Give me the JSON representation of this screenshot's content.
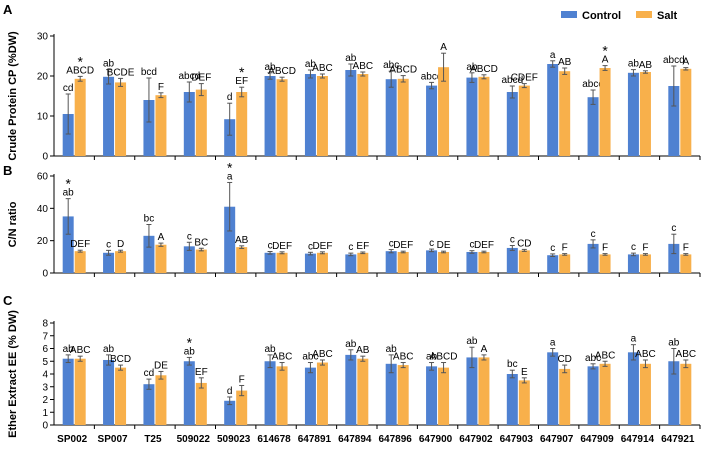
{
  "legend": {
    "control_label": "Control",
    "salt_label": "Salt"
  },
  "colors": {
    "control": "#4f81d1",
    "salt": "#f8b04b"
  },
  "chart_data": [
    {
      "type": "bar",
      "panel": "A",
      "ylabel": "Crude Protein CP (%DW)",
      "ylim": [
        0,
        30
      ],
      "yticks": [
        0,
        10,
        20,
        30
      ],
      "legend_position": "top-right",
      "categories": [
        "SP002",
        "SP007",
        "T25",
        "509022",
        "509023",
        "614678",
        "647891",
        "647894",
        "647896",
        "647900",
        "647902",
        "647903",
        "647907",
        "647909",
        "647914",
        "647921"
      ],
      "series": [
        {
          "name": "Control",
          "values": [
            10.5,
            19.8,
            14.0,
            16.0,
            9.2,
            20.0,
            20.5,
            21.5,
            19.2,
            17.6,
            19.6,
            16.0,
            23.0,
            14.7,
            20.8,
            17.5
          ],
          "errors": [
            5.0,
            1.8,
            5.5,
            2.5,
            4.0,
            0.8,
            1.0,
            1.5,
            2.0,
            0.8,
            1.2,
            1.5,
            0.8,
            1.8,
            0.8,
            5.0
          ],
          "letters": [
            "cd",
            "ab",
            "bcd",
            "abcd",
            "d",
            "ab",
            "ab",
            "ab",
            "abc",
            "abcd",
            "ab",
            "abcd",
            "a",
            "abcd",
            "ab",
            "abcd"
          ],
          "stars": [
            false,
            false,
            false,
            false,
            false,
            false,
            false,
            false,
            false,
            false,
            false,
            false,
            false,
            false,
            false,
            false
          ]
        },
        {
          "name": "Salt",
          "values": [
            19.3,
            18.4,
            15.2,
            16.6,
            16.0,
            19.2,
            20.0,
            20.5,
            19.3,
            22.2,
            19.8,
            17.6,
            21.2,
            22.0,
            21.0,
            21.8
          ],
          "errors": [
            0.6,
            1.0,
            0.6,
            1.5,
            1.2,
            0.5,
            0.5,
            0.5,
            0.8,
            3.5,
            0.5,
            0.5,
            0.8,
            0.6,
            0.3,
            0.3
          ],
          "letters": [
            "ABCD",
            "BCDE",
            "F",
            "DEF",
            "EF",
            "ABCD",
            "ABC",
            "ABC",
            "ABCD",
            "A",
            "ABCD",
            "CDEF",
            "AB",
            "A",
            "AB",
            "A"
          ],
          "stars": [
            true,
            false,
            false,
            false,
            true,
            false,
            false,
            false,
            false,
            false,
            false,
            false,
            false,
            true,
            false,
            false
          ]
        }
      ]
    },
    {
      "type": "bar",
      "panel": "B",
      "ylabel": "C/N ratio",
      "ylim": [
        0,
        60
      ],
      "yticks": [
        0,
        20,
        40,
        60
      ],
      "categories": [
        "SP002",
        "SP007",
        "T25",
        "509022",
        "509023",
        "614678",
        "647891",
        "647894",
        "647896",
        "647900",
        "647902",
        "647903",
        "647907",
        "647909",
        "647914",
        "647921"
      ],
      "series": [
        {
          "name": "Control",
          "values": [
            35.0,
            12.5,
            23.0,
            16.5,
            41.0,
            12.5,
            12.0,
            11.5,
            13.5,
            14.0,
            13.0,
            15.5,
            11.0,
            18.0,
            11.5,
            18.0
          ],
          "errors": [
            11.0,
            1.5,
            7.0,
            2.5,
            15.0,
            0.8,
            0.8,
            0.8,
            1.0,
            0.8,
            0.8,
            1.5,
            0.8,
            2.5,
            0.8,
            6.0
          ],
          "letters": [
            "ab",
            "c",
            "bc",
            "c",
            "a",
            "c",
            "c",
            "c",
            "c",
            "c",
            "c",
            "c",
            "c",
            "c",
            "c",
            "c"
          ],
          "stars": [
            true,
            false,
            false,
            false,
            true,
            false,
            false,
            false,
            false,
            false,
            false,
            false,
            false,
            false,
            false,
            false
          ]
        },
        {
          "name": "Salt",
          "values": [
            13.5,
            13.5,
            17.5,
            14.5,
            16.0,
            12.5,
            12.5,
            12.5,
            13.0,
            13.0,
            13.0,
            14.0,
            11.5,
            11.5,
            11.5,
            11.5
          ],
          "errors": [
            0.6,
            0.6,
            1.0,
            0.8,
            0.8,
            0.6,
            0.6,
            0.5,
            0.5,
            0.5,
            0.5,
            0.6,
            0.5,
            0.5,
            0.5,
            0.5
          ],
          "letters": [
            "DEF",
            "D",
            "A",
            "BC",
            "AB",
            "DEF",
            "DEF",
            "EF",
            "DEF",
            "DE",
            "DEF",
            "CD",
            "F",
            "F",
            "F",
            "F"
          ],
          "stars": [
            false,
            false,
            false,
            false,
            false,
            false,
            false,
            false,
            false,
            false,
            false,
            false,
            false,
            false,
            false,
            false
          ]
        }
      ]
    },
    {
      "type": "bar",
      "panel": "C",
      "ylabel": "Ether Extract EE (% DW)",
      "ylim": [
        0,
        8
      ],
      "yticks": [
        0,
        1,
        2,
        3,
        4,
        5,
        6,
        7,
        8
      ],
      "categories": [
        "SP002",
        "SP007",
        "T25",
        "509022",
        "509023",
        "614678",
        "647891",
        "647894",
        "647896",
        "647900",
        "647902",
        "647903",
        "647907",
        "647909",
        "647914",
        "647921"
      ],
      "series": [
        {
          "name": "Control",
          "values": [
            5.2,
            5.1,
            3.2,
            5.0,
            1.9,
            5.0,
            4.5,
            5.5,
            4.8,
            4.6,
            5.3,
            4.0,
            5.7,
            4.6,
            5.7,
            5.0
          ],
          "errors": [
            0.3,
            0.4,
            0.4,
            0.3,
            0.3,
            0.5,
            0.4,
            0.4,
            0.7,
            0.3,
            0.8,
            0.3,
            0.3,
            0.2,
            0.6,
            1.0
          ],
          "letters": [
            "ab",
            "ab",
            "cd",
            "ab",
            "d",
            "ab",
            "abc",
            "ab",
            "ab",
            "ab",
            "ab",
            "bc",
            "a",
            "abc",
            "a",
            "ab"
          ],
          "stars": [
            false,
            false,
            false,
            true,
            false,
            false,
            false,
            false,
            false,
            false,
            false,
            false,
            false,
            false,
            false,
            false
          ]
        },
        {
          "name": "Salt",
          "values": [
            5.2,
            4.5,
            3.9,
            3.3,
            2.7,
            4.6,
            4.9,
            5.2,
            4.7,
            4.5,
            5.3,
            3.5,
            4.4,
            4.8,
            4.8,
            4.8
          ],
          "errors": [
            0.2,
            0.2,
            0.3,
            0.4,
            0.4,
            0.3,
            0.2,
            0.2,
            0.2,
            0.4,
            0.2,
            0.2,
            0.3,
            0.2,
            0.3,
            0.3
          ],
          "letters": [
            "ABC",
            "BCD",
            "DE",
            "EF",
            "F",
            "ABC",
            "ABC",
            "AB",
            "ABC",
            "ABCD",
            "A",
            "E",
            "CD",
            "ABC",
            "ABC",
            "ABC"
          ],
          "stars": [
            false,
            false,
            false,
            false,
            false,
            false,
            false,
            false,
            false,
            false,
            false,
            false,
            false,
            false,
            false,
            false
          ]
        }
      ]
    }
  ]
}
